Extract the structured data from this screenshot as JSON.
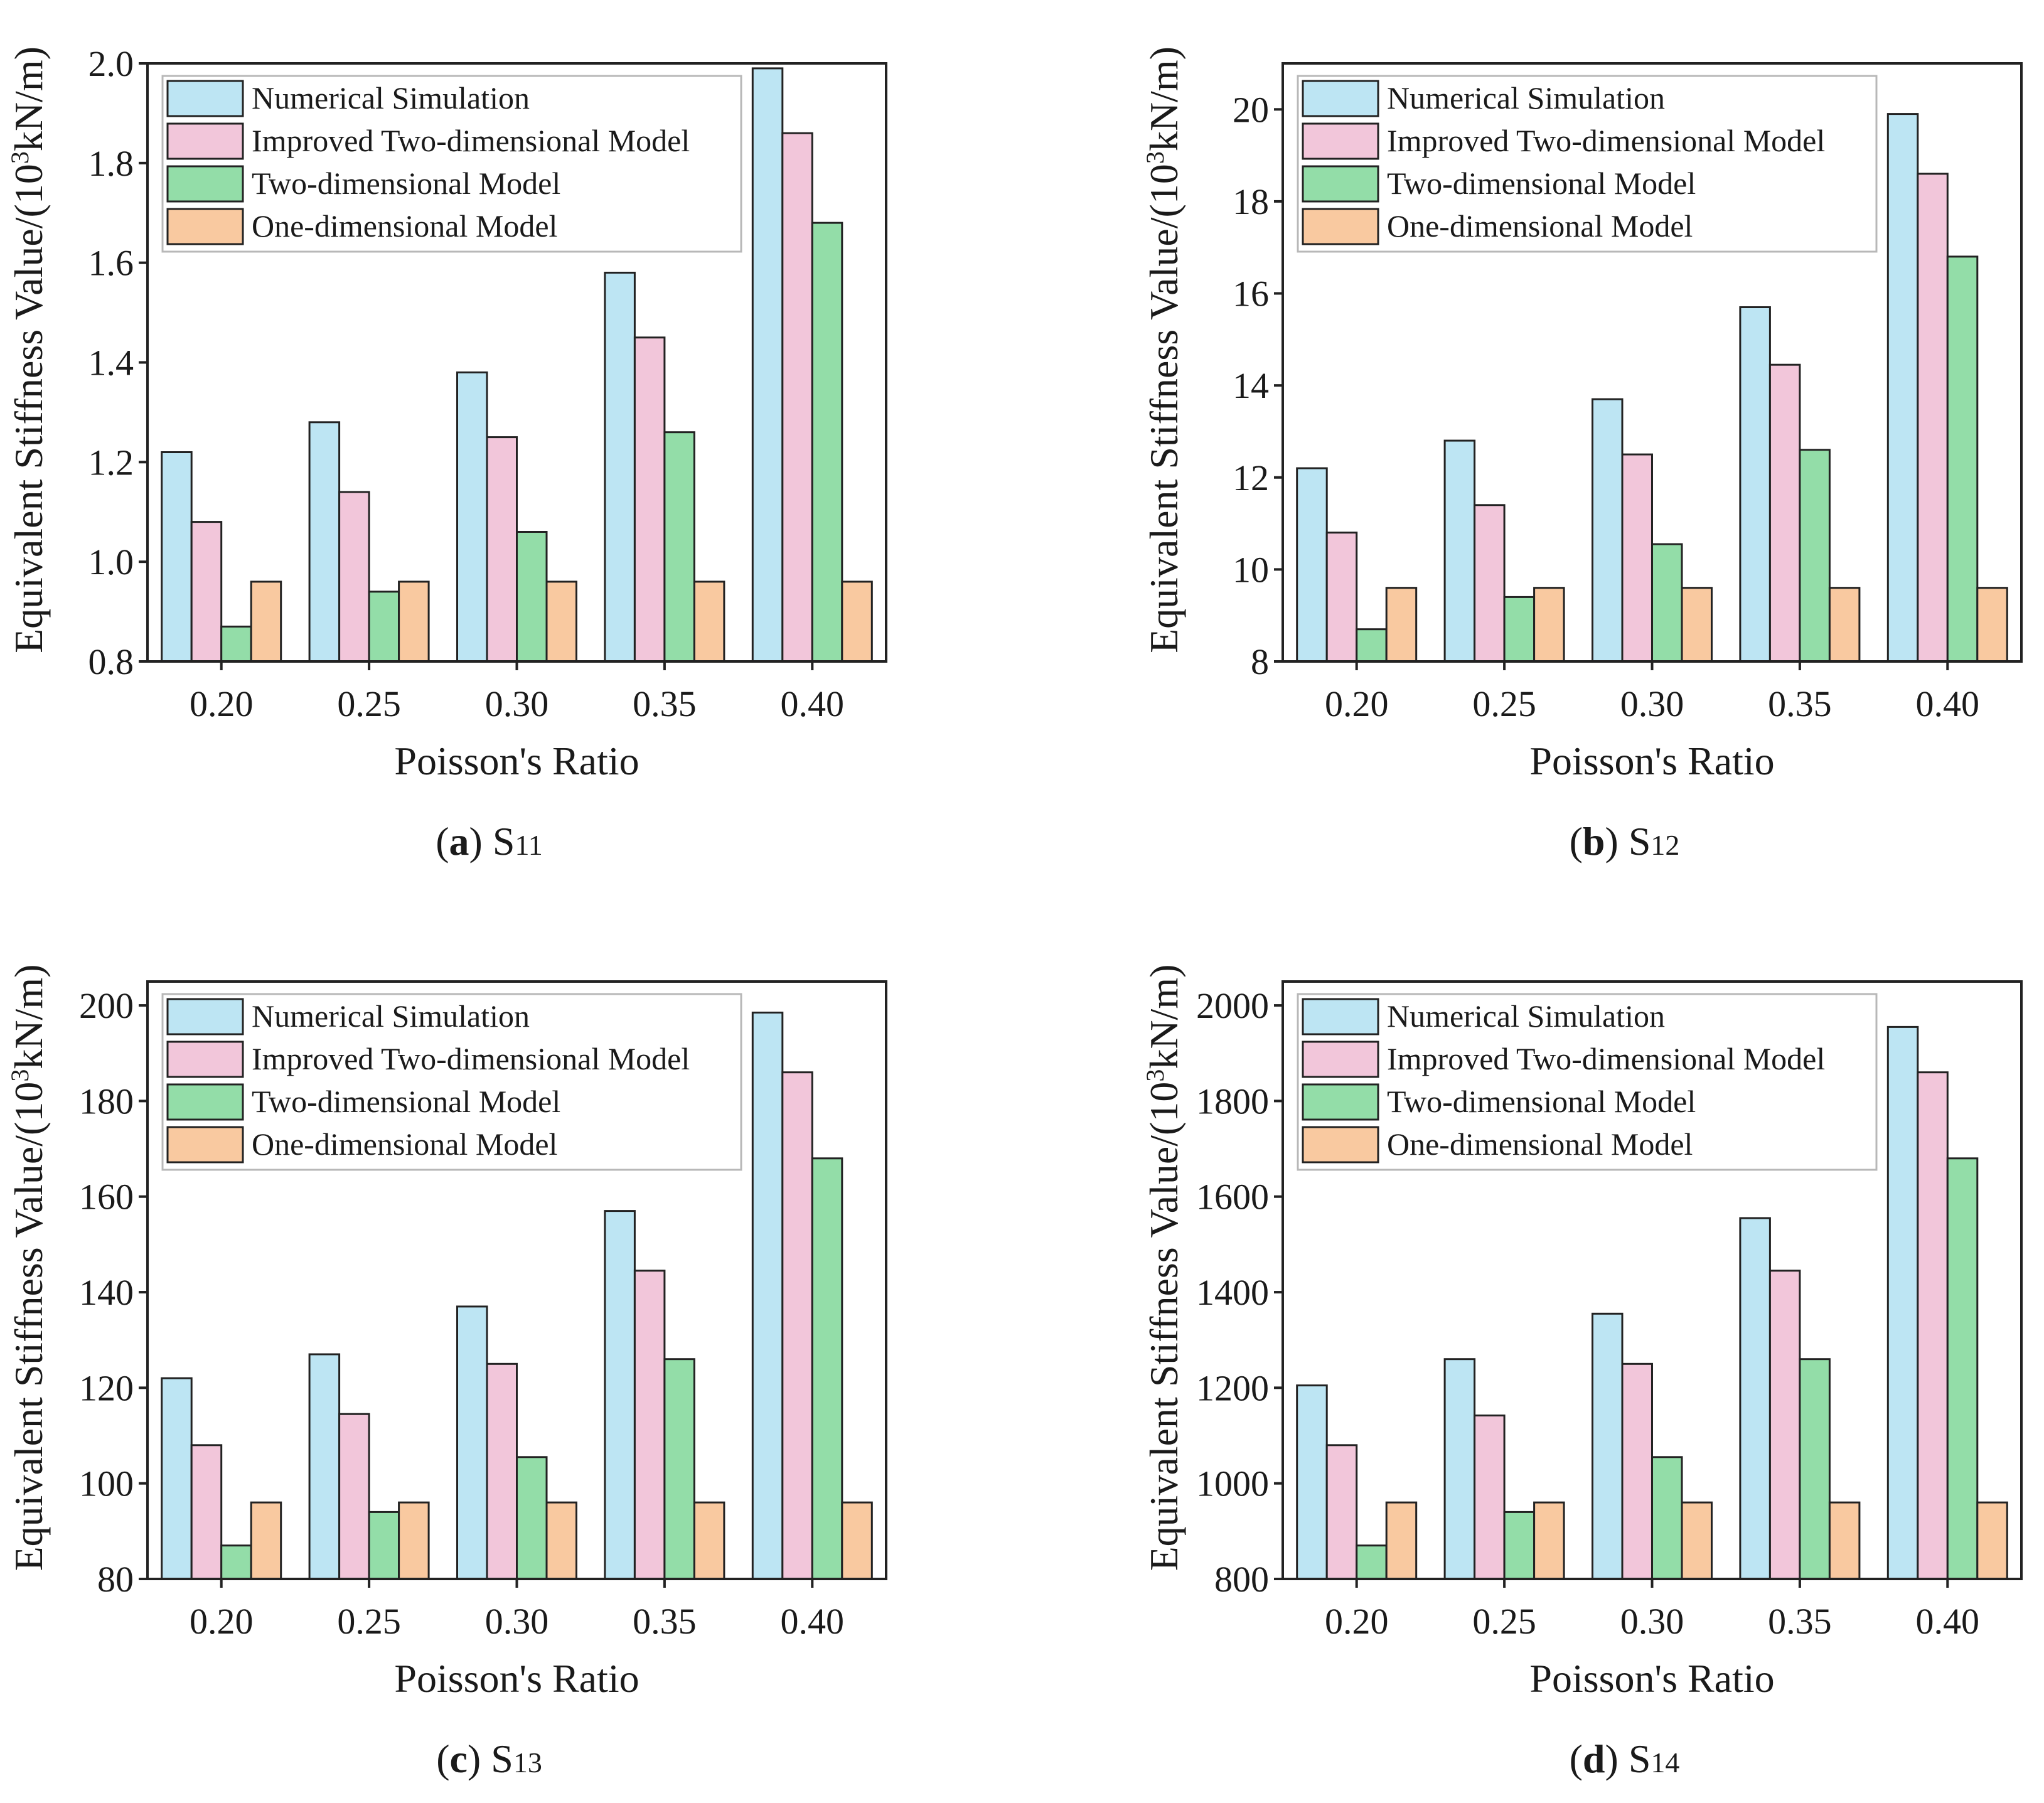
{
  "colors": {
    "numerical": "#bde5f3",
    "improved": "#f2c6da",
    "two_dim": "#93dda8",
    "one_dim": "#f9c9a0"
  },
  "chart_data": [
    {
      "type": "bar",
      "label": "a",
      "subscript_label": "S",
      "subscript": "11",
      "xlabel": "Poisson's Ratio",
      "ylabel": "Equivalent Stiffness Value/(10",
      "ylabel_sup": "3",
      "ylabel_unit": "kN/m)",
      "categories": [
        "0.20",
        "0.25",
        "0.30",
        "0.35",
        "0.40"
      ],
      "ylim": [
        0.8,
        2.0
      ],
      "yticks": [
        0.8,
        1.0,
        1.2,
        1.4,
        1.6,
        1.8,
        2.0
      ],
      "ytick_labels": [
        "0.8",
        "1.0",
        "1.2",
        "1.4",
        "1.6",
        "1.8",
        "2.0"
      ],
      "legend_position": "top-left",
      "series": [
        {
          "name": "Numerical Simulation",
          "values": [
            1.22,
            1.28,
            1.38,
            1.58,
            1.99
          ]
        },
        {
          "name": "Improved Two-dimensional Model",
          "values": [
            1.08,
            1.14,
            1.25,
            1.45,
            1.86
          ]
        },
        {
          "name": "Two-dimensional Model",
          "values": [
            0.87,
            0.94,
            1.06,
            1.26,
            1.68
          ]
        },
        {
          "name": "One-dimensional Model",
          "values": [
            0.96,
            0.96,
            0.96,
            0.96,
            0.96
          ]
        }
      ]
    },
    {
      "type": "bar",
      "label": "b",
      "subscript_label": "S",
      "subscript": "12",
      "xlabel": "Poisson's Ratio",
      "ylabel": "Equivalent Stiffness Value/(10",
      "ylabel_sup": "3",
      "ylabel_unit": "kN/m)",
      "categories": [
        "0.20",
        "0.25",
        "0.30",
        "0.35",
        "0.40"
      ],
      "ylim": [
        8,
        21
      ],
      "yticks": [
        8,
        10,
        12,
        14,
        16,
        18,
        20
      ],
      "ytick_labels": [
        "8",
        "10",
        "12",
        "14",
        "16",
        "18",
        "20"
      ],
      "legend_position": "top-left",
      "series": [
        {
          "name": "Numerical Simulation",
          "values": [
            12.2,
            12.8,
            13.7,
            15.7,
            19.9
          ]
        },
        {
          "name": "Improved Two-dimensional Model",
          "values": [
            10.8,
            11.4,
            12.5,
            14.45,
            18.6
          ]
        },
        {
          "name": "Two-dimensional Model",
          "values": [
            8.7,
            9.4,
            10.55,
            12.6,
            16.8
          ]
        },
        {
          "name": "One-dimensional Model",
          "values": [
            9.6,
            9.6,
            9.6,
            9.6,
            9.6
          ]
        }
      ]
    },
    {
      "type": "bar",
      "label": "c",
      "subscript_label": "S",
      "subscript": "13",
      "xlabel": "Poisson's Ratio",
      "ylabel": "Equivalent Stiffness Value/(10",
      "ylabel_sup": "3",
      "ylabel_unit": "kN/m)",
      "categories": [
        "0.20",
        "0.25",
        "0.30",
        "0.35",
        "0.40"
      ],
      "ylim": [
        80,
        205
      ],
      "yticks": [
        80,
        100,
        120,
        140,
        160,
        180,
        200
      ],
      "ytick_labels": [
        "80",
        "100",
        "120",
        "140",
        "160",
        "180",
        "200"
      ],
      "legend_position": "top-left",
      "series": [
        {
          "name": "Numerical Simulation",
          "values": [
            122,
            127,
            137,
            157,
            198.5
          ]
        },
        {
          "name": "Improved Two-dimensional Model",
          "values": [
            108,
            114.5,
            125,
            144.5,
            186
          ]
        },
        {
          "name": "Two-dimensional Model",
          "values": [
            87,
            94,
            105.5,
            126,
            168
          ]
        },
        {
          "name": "One-dimensional Model",
          "values": [
            96,
            96,
            96,
            96,
            96
          ]
        }
      ]
    },
    {
      "type": "bar",
      "label": "d",
      "subscript_label": "S",
      "subscript": "14",
      "xlabel": "Poisson's Ratio",
      "ylabel": "Equivalent Stiffness Value/(10",
      "ylabel_sup": "3",
      "ylabel_unit": "kN/m)",
      "categories": [
        "0.20",
        "0.25",
        "0.30",
        "0.35",
        "0.40"
      ],
      "ylim": [
        800,
        2050
      ],
      "yticks": [
        800,
        1000,
        1200,
        1400,
        1600,
        1800,
        2000
      ],
      "ytick_labels": [
        "800",
        "1000",
        "1200",
        "1400",
        "1600",
        "1800",
        "2000"
      ],
      "legend_position": "top-left",
      "series": [
        {
          "name": "Numerical Simulation",
          "values": [
            1205,
            1260,
            1355,
            1555,
            1955
          ]
        },
        {
          "name": "Improved Two-dimensional Model",
          "values": [
            1080,
            1142,
            1250,
            1445,
            1860
          ]
        },
        {
          "name": "Two-dimensional Model",
          "values": [
            870,
            940,
            1055,
            1260,
            1680
          ]
        },
        {
          "name": "One-dimensional Model",
          "values": [
            960,
            960,
            960,
            960,
            960
          ]
        }
      ]
    }
  ]
}
